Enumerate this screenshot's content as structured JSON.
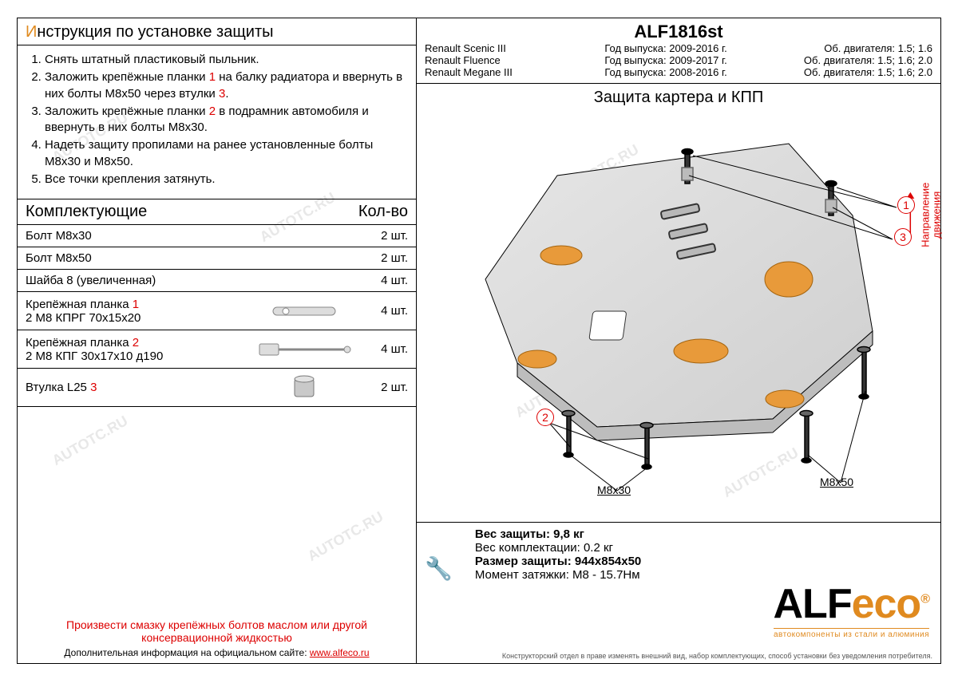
{
  "watermark_text": "AUTOTC.RU",
  "left": {
    "instructions_title_first": "И",
    "instructions_title_rest": "нструкция по установке защиты",
    "steps": [
      {
        "pre": "Снять штатный пластиковый пыльник."
      },
      {
        "pre": "Заложить крепёжные планки ",
        "ref": "1",
        "post": " на балку радиатора и ввернуть в них болты М8х50 через втулки ",
        "ref2": "3",
        "post2": "."
      },
      {
        "pre": "Заложить крепёжные планки ",
        "ref": "2",
        "post": " в подрамник автомобиля и ввернуть в них болты М8х30."
      },
      {
        "pre": "Надеть защиту пропилами на ранее установленные болты М8х30 и М8х50."
      },
      {
        "pre": "Все точки крепления затянуть."
      }
    ],
    "components_header": "Комплектующие",
    "qty_header": "Кол-во",
    "components": [
      {
        "name": "Болт М8х30",
        "qty": "2 шт.",
        "tall": false,
        "icon": null,
        "ref": null
      },
      {
        "name": "Болт М8х50",
        "qty": "2 шт.",
        "tall": false,
        "icon": null,
        "ref": null
      },
      {
        "name": "Шайба 8 (увеличенная)",
        "qty": "4 шт.",
        "tall": false,
        "icon": null,
        "ref": null
      },
      {
        "name_line1": "Крепёжная планка ",
        "ref": "1",
        "name_line2": "2 М8 КПРГ 70х15х20",
        "qty": "4 шт.",
        "tall": true,
        "icon": "bracket-flat"
      },
      {
        "name_line1": "Крепёжная планка ",
        "ref": "2",
        "name_line2": "2 М8 КПГ 30х17х10 д190",
        "qty": "4 шт.",
        "tall": true,
        "icon": "bracket-rod"
      },
      {
        "name_line1": "Втулка L25 ",
        "ref": "3",
        "name_line2": "",
        "qty": "2 шт.",
        "tall": true,
        "icon": "sleeve"
      }
    ],
    "warning": "Произвести смазку крепёжных болтов маслом или другой консервационной жидкостью",
    "site_prefix": "Дополнительная информация на официальном сайте: ",
    "site_url": "www.alfeco.ru"
  },
  "right": {
    "product_code": "ALF1816st",
    "vehicles": [
      {
        "model": "Renault Scenic III",
        "years": "Год выпуска: 2009-2016 г.",
        "engines": "Об. двигателя: 1.5; 1.6"
      },
      {
        "model": "Renault Fluence",
        "years": "Год выпуска: 2009-2017 г.",
        "engines": "Об. двигателя: 1.5; 1.6; 2.0"
      },
      {
        "model": "Renault Megane III",
        "years": "Год выпуска: 2008-2016 г.",
        "engines": "Об. двигателя: 1.5; 1.6; 2.0"
      }
    ],
    "drawing_title": "Защита картера и КПП",
    "direction_label": "Направление\nдвижения",
    "callouts": {
      "c1": "1",
      "c2": "2",
      "c3": "3"
    },
    "bolt_labels": {
      "left": "М8х30",
      "right": "М8х50"
    },
    "specs": {
      "weight_protection": "Вес защиты: 9,8 кг",
      "weight_kit": "Вес комплектации: 0.2 кг",
      "dimensions": "Размер защиты: 944х854х50",
      "torque": "Момент затяжки:  М8 - 15.7Нм"
    },
    "brand": {
      "alf": "ALF",
      "eco": "eco",
      "reg": "®",
      "tagline": "автокомпоненты из стали и алюминия"
    },
    "disclaimer": "Конструкторский отдел в праве изменять внешний вид, набор комплектующих, способ установки без уведомления потребителя."
  },
  "colors": {
    "accent_orange": "#e08a1f",
    "red": "#d00000",
    "plate_fill": "#d9d9d9",
    "plate_highlight": "#e89a3a",
    "stroke": "#000000"
  }
}
